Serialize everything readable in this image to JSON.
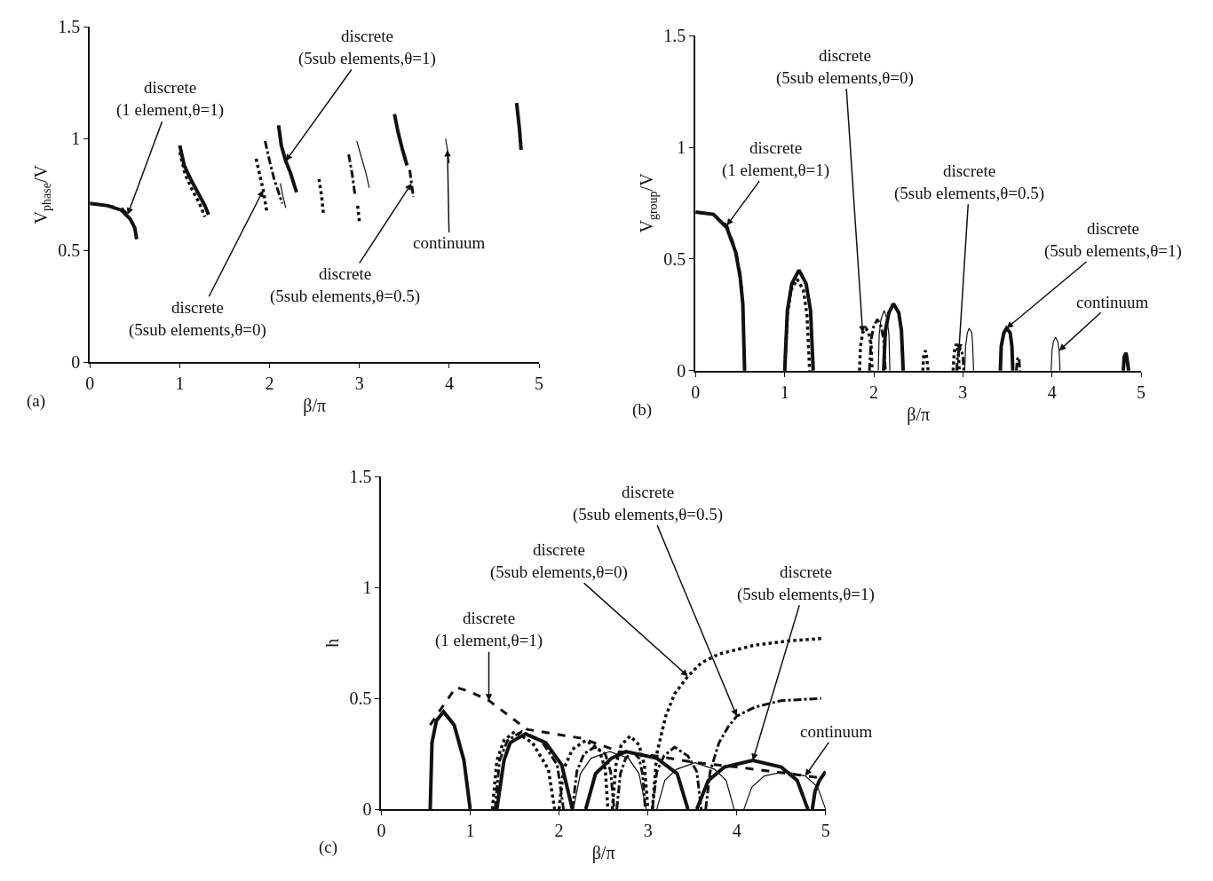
{
  "chart_data": [
    {
      "type": "line",
      "xlabel": "β/π",
      "ylabel": "V$_{phase}$/V",
      "xlim": [
        0,
        5
      ],
      "ylim": [
        0,
        1.5
      ],
      "xticks": [
        0,
        1,
        2,
        3,
        4,
        5
      ],
      "yticks": [
        0,
        0.5,
        1,
        1.5
      ],
      "marker": "none",
      "series": [
        {
          "color": "#111111",
          "line_style": "dashed",
          "x": [
            0,
            0.2,
            0.35,
            0.42
          ],
          "values": [
            0.71,
            0.7,
            0.69,
            0.66
          ]
        },
        {
          "color": "#111111",
          "line_style": "dotted",
          "x": [
            1.0,
            1.06,
            1.14,
            1.22,
            1.28,
            null,
            1.85,
            1.9,
            1.93,
            1.97,
            null,
            2.55,
            2.58,
            2.6,
            null,
            2.98,
            3.0
          ],
          "values": [
            0.94,
            0.84,
            0.77,
            0.71,
            0.65,
            null,
            0.91,
            0.82,
            0.77,
            0.67,
            null,
            0.82,
            0.74,
            0.66,
            null,
            0.7,
            0.63
          ]
        },
        {
          "color": "#111111",
          "line_style": "dashdot",
          "x": [
            1.95,
            2.0,
            2.05,
            2.1,
            2.14,
            null,
            2.88,
            2.92,
            2.95,
            null,
            3.56,
            3.58,
            3.6
          ],
          "values": [
            0.99,
            0.9,
            0.82,
            0.76,
            0.71,
            null,
            0.93,
            0.84,
            0.75,
            null,
            0.86,
            0.8,
            0.74
          ]
        },
        {
          "color": "#111111",
          "line_style": "solid",
          "x": [
            0,
            0.2,
            0.35,
            0.45,
            0.5,
            0.52,
            null,
            1.0,
            1.05,
            1.12,
            1.2,
            1.28,
            1.32,
            null,
            2.1,
            2.13,
            2.18,
            2.23,
            2.3,
            null,
            3.39,
            3.43,
            3.48,
            3.53,
            null,
            4.75,
            4.78,
            4.8
          ],
          "values": [
            0.71,
            0.7,
            0.68,
            0.64,
            0.6,
            0.55,
            null,
            0.97,
            0.88,
            0.82,
            0.76,
            0.7,
            0.66,
            null,
            1.06,
            0.97,
            0.9,
            0.85,
            0.76,
            null,
            1.11,
            1.03,
            0.95,
            0.88,
            null,
            1.16,
            1.05,
            0.95
          ]
        },
        {
          "color": "#111111",
          "line_style": "solid",
          "x": [
            2.12,
            2.15,
            2.18,
            null,
            2.97,
            3.02,
            3.07,
            3.11,
            null,
            3.96,
            3.98,
            4.0
          ],
          "values": [
            0.8,
            0.74,
            0.69,
            null,
            0.99,
            0.92,
            0.85,
            0.78,
            null,
            1.0,
            0.95,
            0.89
          ]
        }
      ],
      "annotations": [
        {
          "text": "discrete\n(1 element,θ=1)",
          "x": 0.42,
          "y": 0.66
        },
        {
          "text": "discrete\n(5sub elements,θ=1)",
          "x": 2.18,
          "y": 0.9
        },
        {
          "text": "discrete\n(5sub elements,θ=0)",
          "x": 1.93,
          "y": 0.77
        },
        {
          "text": "discrete\n(5sub elements,θ=0.5)",
          "x": 3.58,
          "y": 0.8
        },
        {
          "text": "continuum",
          "x": 3.98,
          "y": 0.95
        },
        "(a)"
      ]
    },
    {
      "type": "line",
      "xlabel": "β/π",
      "ylabel": "V$_{group}$/V",
      "xlim": [
        0,
        5
      ],
      "ylim": [
        0,
        1.5
      ],
      "xticks": [
        0,
        1,
        2,
        3,
        4,
        5
      ],
      "yticks": [
        0,
        0.5,
        1,
        1.5
      ],
      "marker": "none",
      "series": [
        {
          "color": "#111111",
          "line_style": "dashed",
          "x": [
            0,
            0.2,
            0.35,
            0.45,
            0.5,
            0.53,
            0.55
          ],
          "values": [
            0.71,
            0.7,
            0.65,
            0.54,
            0.43,
            0.3,
            0
          ]
        },
        {
          "color": "#111111",
          "line_style": "dotted",
          "x": [
            1.0,
            1.03,
            1.07,
            1.14,
            1.21,
            1.25,
            1.28,
            null,
            1.84,
            1.85,
            1.875,
            1.91,
            1.945,
            1.97,
            1.98,
            null,
            2.55,
            2.56,
            2.58,
            2.59,
            2.61,
            null,
            2.89,
            2.9,
            2.91,
            2.925,
            2.94,
            2.95,
            2.96
          ],
          "values": [
            0,
            0.25,
            0.36,
            0.41,
            0.36,
            0.25,
            0,
            null,
            0,
            0.11,
            0.17,
            0.19,
            0.17,
            0.11,
            0,
            null,
            0,
            0.07,
            0.09,
            0.07,
            0,
            null,
            0,
            0.07,
            0.1,
            0.12,
            0.1,
            0.07,
            0
          ]
        },
        {
          "color": "#111111",
          "line_style": "dashdot",
          "x": [
            1.95,
            1.97,
            2.0,
            2.04,
            2.08,
            2.11,
            2.13,
            null,
            2.93,
            2.94,
            2.955,
            2.97,
            2.985,
            3.0,
            3.01,
            null,
            3.6,
            3.61,
            3.62,
            3.63,
            3.64
          ],
          "values": [
            0,
            0.14,
            0.2,
            0.23,
            0.2,
            0.14,
            0,
            null,
            0,
            0.06,
            0.09,
            0.1,
            0.09,
            0.06,
            0,
            null,
            0,
            0.05,
            0.06,
            0.05,
            0
          ]
        },
        {
          "color": "#111111",
          "line_style": "solid",
          "x": [
            0,
            0.2,
            0.35,
            0.45,
            0.5,
            0.53,
            0.55,
            null,
            1.0,
            1.03,
            1.08,
            1.16,
            1.24,
            1.29,
            1.32,
            null,
            2.11,
            2.13,
            2.17,
            2.22,
            2.28,
            2.31,
            2.33,
            null,
            3.42,
            3.43,
            3.46,
            3.49,
            3.53,
            3.55,
            3.56,
            null,
            4.8,
            4.81,
            4.83,
            4.84,
            4.86
          ],
          "values": [
            0.71,
            0.7,
            0.64,
            0.53,
            0.42,
            0.3,
            0,
            null,
            0,
            0.27,
            0.39,
            0.45,
            0.39,
            0.27,
            0,
            null,
            0,
            0.18,
            0.26,
            0.3,
            0.26,
            0.18,
            0,
            null,
            0,
            0.11,
            0.17,
            0.19,
            0.17,
            0.11,
            0,
            null,
            0,
            0.06,
            0.08,
            0.06,
            0
          ]
        },
        {
          "color": "#111111",
          "line_style": "solid",
          "x": [
            2.05,
            2.06,
            2.08,
            2.115,
            2.15,
            2.17,
            2.18,
            null,
            3.02,
            3.03,
            3.05,
            3.07,
            3.1,
            3.11,
            3.12,
            null,
            3.99,
            4.0,
            4.015,
            4.04,
            4.065,
            4.08,
            4.09
          ],
          "values": [
            0,
            0.16,
            0.23,
            0.27,
            0.23,
            0.16,
            0,
            null,
            0,
            0.11,
            0.17,
            0.19,
            0.17,
            0.11,
            0,
            null,
            0,
            0.09,
            0.13,
            0.15,
            0.13,
            0.09,
            0
          ]
        }
      ],
      "annotations": [
        {
          "text": "discrete\n(1 element,θ=1)",
          "x": 0.35,
          "y": 0.65
        },
        {
          "text": "discrete\n(5sub elements,θ=0)",
          "x": 1.875,
          "y": 0.17
        },
        {
          "text": "discrete\n(5sub elements,θ=0.5)",
          "x": 2.955,
          "y": 0.09
        },
        {
          "text": "discrete\n(5sub elements,θ=1)",
          "x": 3.49,
          "y": 0.19
        },
        {
          "text": "continuum",
          "x": 4.08,
          "y": 0.09
        },
        "(b)"
      ]
    },
    {
      "type": "line",
      "xlabel": "β/π",
      "ylabel": "h",
      "xlim": [
        0,
        5
      ],
      "ylim": [
        0,
        1.5
      ],
      "xticks": [
        0,
        1,
        2,
        3,
        4,
        5
      ],
      "yticks": [
        0,
        0.5,
        1,
        1.5
      ],
      "marker": "none",
      "series": [
        {
          "color": "#111111",
          "line_style": "dashed",
          "x": [
            0.55,
            0.65,
            0.84,
            1.0,
            1.21,
            1.64,
            2.25,
            2.68,
            3.1,
            3.54,
            4.0,
            4.4,
            4.97
          ],
          "values": [
            0.38,
            0.44,
            0.55,
            0.53,
            0.49,
            0.36,
            0.32,
            0.26,
            0.24,
            0.21,
            0.19,
            0.17,
            0.14
          ]
        },
        {
          "color": "#111111",
          "line_style": "dotted",
          "x": [
            1.25,
            1.3,
            1.38,
            1.5,
            1.7,
            1.88,
            1.95,
            null,
            2.0,
            2.05,
            2.15,
            2.3,
            2.45,
            2.52,
            2.55,
            null,
            2.6,
            2.64,
            2.7,
            2.8,
            2.9,
            2.96,
            3.0,
            null,
            3.05,
            3.1,
            3.2,
            3.3,
            3.45,
            3.6,
            3.8,
            4.2,
            4.6,
            4.95
          ],
          "values": [
            0,
            0.22,
            0.31,
            0.35,
            0.3,
            0.18,
            0,
            null,
            0,
            0.18,
            0.27,
            0.31,
            0.27,
            0.18,
            0,
            null,
            0,
            0.2,
            0.29,
            0.33,
            0.29,
            0.2,
            0,
            null,
            0,
            0.25,
            0.42,
            0.52,
            0.6,
            0.66,
            0.7,
            0.74,
            0.76,
            0.77
          ]
        },
        {
          "color": "#111111",
          "line_style": "dashdot",
          "x": [
            1.28,
            1.33,
            1.42,
            1.58,
            1.8,
            1.98,
            2.05,
            null,
            2.15,
            2.2,
            2.28,
            2.4,
            2.52,
            2.58,
            2.62,
            null,
            2.65,
            2.69,
            2.75,
            2.83,
            2.9,
            2.94,
            2.97,
            null,
            3.05,
            3.1,
            3.18,
            3.3,
            3.45,
            3.55,
            3.6,
            null,
            3.65,
            3.7,
            3.8,
            3.9,
            4.0,
            4.2,
            4.5,
            4.95
          ],
          "values": [
            0,
            0.22,
            0.31,
            0.35,
            0.31,
            0.2,
            0,
            null,
            0,
            0.17,
            0.25,
            0.28,
            0.25,
            0.17,
            0,
            null,
            0,
            0.16,
            0.23,
            0.26,
            0.23,
            0.16,
            0,
            null,
            0,
            0.17,
            0.24,
            0.28,
            0.24,
            0.17,
            0,
            null,
            0,
            0.17,
            0.3,
            0.37,
            0.42,
            0.46,
            0.49,
            0.5
          ]
        },
        {
          "color": "#111111",
          "line_style": "solid",
          "x": [
            0.55,
            0.57,
            0.62,
            0.7,
            0.82,
            0.93,
            1.0,
            null,
            1.3,
            1.38,
            1.45,
            1.62,
            1.85,
            2.03,
            2.15,
            null,
            2.3,
            2.41,
            2.59,
            2.75,
            3.1,
            3.33,
            3.45,
            null,
            3.55,
            3.68,
            3.86,
            4.18,
            4.5,
            4.68,
            4.8,
            null,
            4.85,
            4.88,
            4.93,
            5.0
          ],
          "values": [
            0,
            0.3,
            0.4,
            0.44,
            0.38,
            0.22,
            0,
            null,
            0,
            0.22,
            0.3,
            0.34,
            0.3,
            0.2,
            0,
            null,
            0,
            0.16,
            0.23,
            0.26,
            0.23,
            0.16,
            0,
            null,
            0,
            0.13,
            0.19,
            0.22,
            0.19,
            0.13,
            0,
            null,
            0,
            0.08,
            0.13,
            0.17
          ]
        },
        {
          "color": "#111111",
          "line_style": "solid",
          "x": [
            2.16,
            2.24,
            2.36,
            2.57,
            2.78,
            2.9,
            2.98,
            null,
            3.1,
            3.19,
            3.32,
            3.53,
            3.75,
            3.88,
            3.97,
            null,
            4.08,
            4.17,
            4.31,
            4.54,
            4.77,
            4.91,
            5.0
          ],
          "values": [
            0,
            0.16,
            0.23,
            0.26,
            0.23,
            0.16,
            0,
            null,
            0,
            0.13,
            0.18,
            0.21,
            0.18,
            0.13,
            0,
            null,
            0,
            0.1,
            0.15,
            0.17,
            0.15,
            0.1,
            0
          ]
        }
      ],
      "annotations": [
        {
          "text": "discrete\n(1 element,θ=1)",
          "x": 1.21,
          "y": 0.49
        },
        {
          "text": "discrete\n(5sub elements,θ=0)",
          "x": 3.45,
          "y": 0.6
        },
        {
          "text": "discrete\n(5sub elements,θ=0.5)",
          "x": 4.0,
          "y": 0.42
        },
        {
          "text": "discrete\n(5sub elements,θ=1)",
          "x": 4.18,
          "y": 0.22
        },
        {
          "text": "continuum",
          "x": 4.77,
          "y": 0.15
        },
        "(c)"
      ]
    }
  ]
}
